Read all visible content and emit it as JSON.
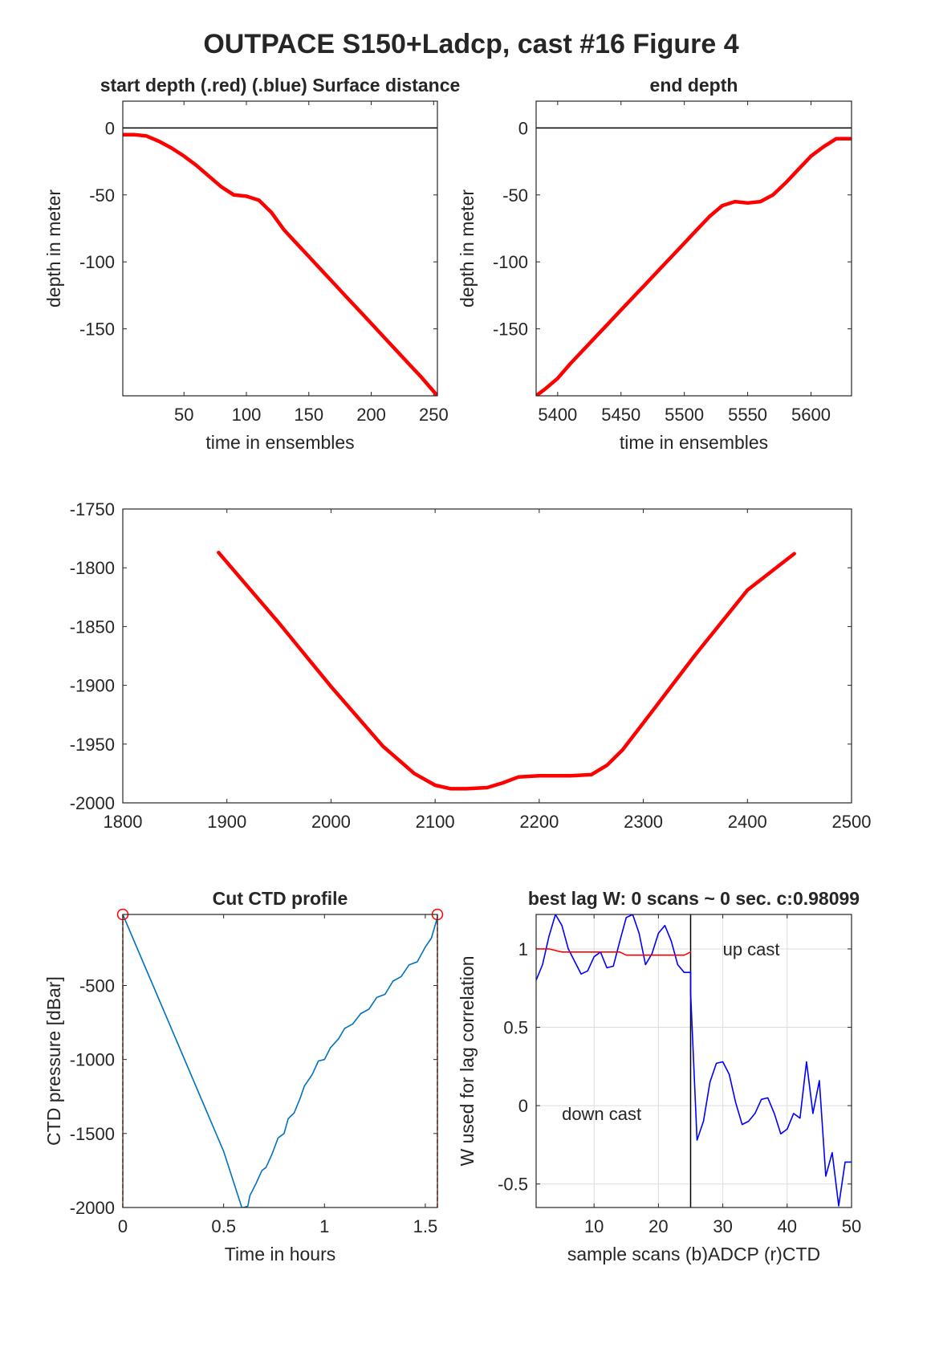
{
  "figure_title": "OUTPACE S150+Ladcp, cast #16   Figure 4",
  "chart_data": [
    {
      "id": "start",
      "type": "line",
      "title": "start depth (.red) (.blue) Surface distance",
      "xlabel": "time in ensembles",
      "ylabel": "depth in meter",
      "xlim": [
        1,
        253
      ],
      "ylim": [
        -200,
        20
      ],
      "xticks": [
        50,
        100,
        150,
        200,
        250
      ],
      "yticks": [
        0,
        -50,
        -100,
        -150
      ],
      "hline": 0,
      "series": [
        {
          "color": "#ff0000",
          "x": [
            1,
            10,
            20,
            30,
            40,
            50,
            60,
            70,
            80,
            90,
            100,
            110,
            120,
            130,
            140,
            150,
            160,
            170,
            180,
            190,
            200,
            210,
            220,
            230,
            240,
            253
          ],
          "y": [
            -5,
            -5,
            -6,
            -10,
            -15,
            -21,
            -28,
            -36,
            -44,
            -50,
            -51,
            -54,
            -63,
            -76,
            -86,
            -96,
            -106,
            -116,
            -126,
            -136,
            -146,
            -156,
            -166,
            -176,
            -186,
            -200
          ]
        }
      ]
    },
    {
      "id": "end",
      "type": "line",
      "title": "end depth",
      "xlabel": "time in ensembles",
      "ylabel": "depth in meter",
      "xlim": [
        5383,
        5632
      ],
      "ylim": [
        -200,
        20
      ],
      "xticks": [
        5400,
        5450,
        5500,
        5550,
        5600
      ],
      "yticks": [
        0,
        -50,
        -100,
        -150
      ],
      "hline": 0,
      "series": [
        {
          "color": "#ff0000",
          "x": [
            5383,
            5390,
            5400,
            5410,
            5420,
            5430,
            5440,
            5450,
            5460,
            5470,
            5480,
            5490,
            5500,
            5510,
            5520,
            5530,
            5540,
            5550,
            5560,
            5570,
            5580,
            5590,
            5600,
            5610,
            5620,
            5632
          ],
          "y": [
            -200,
            -195,
            -187,
            -176,
            -166,
            -156,
            -146,
            -136,
            -126,
            -116,
            -106,
            -96,
            -86,
            -76,
            -66,
            -58,
            -55,
            -56,
            -55,
            -50,
            -41,
            -31,
            -21,
            -14,
            -8,
            -8
          ]
        }
      ]
    },
    {
      "id": "middle",
      "type": "line",
      "title": "",
      "xlabel": "",
      "ylabel": "",
      "xlim": [
        1800,
        2500
      ],
      "ylim": [
        -2000,
        -1750
      ],
      "xticks": [
        1800,
        1900,
        2000,
        2100,
        2200,
        2300,
        2400,
        2500
      ],
      "yticks": [
        -2000,
        -1950,
        -1900,
        -1850,
        -1800,
        -1750
      ],
      "series": [
        {
          "color": "#ff0000",
          "x": [
            1892,
            1950,
            2000,
            2050,
            2080,
            2100,
            2115,
            2130,
            2150,
            2165,
            2180,
            2200,
            2230,
            2250,
            2265,
            2280,
            2300,
            2350,
            2400,
            2445
          ],
          "y": [
            -1787,
            -1847,
            -1901,
            -1952,
            -1975,
            -1985,
            -1988,
            -1988,
            -1987,
            -1983,
            -1978,
            -1977,
            -1977,
            -1976,
            -1968,
            -1955,
            -1932,
            -1874,
            -1819,
            -1788
          ]
        }
      ]
    },
    {
      "id": "ctd",
      "type": "line",
      "title": "Cut CTD profile",
      "xlabel": "Time in hours",
      "ylabel": "CTD pressure [dBar]",
      "xlim": [
        0,
        1.56
      ],
      "ylim": [
        -2000,
        -20
      ],
      "xticks": [
        0,
        0.5,
        1,
        1.5
      ],
      "xtick_labels": [
        "0",
        "0.5",
        "1",
        "1.5"
      ],
      "yticks": [
        -500,
        -1000,
        -1500,
        -2000
      ],
      "series": [
        {
          "color": "#0072bd",
          "x": [
            0,
            0.1,
            0.2,
            0.3,
            0.4,
            0.5,
            0.59,
            0.6,
            0.62,
            0.63,
            0.66,
            0.69,
            0.71,
            0.74,
            0.77,
            0.8,
            0.82,
            0.85,
            0.88,
            0.9,
            0.94,
            0.97,
            1.0,
            1.03,
            1.07,
            1.1,
            1.14,
            1.18,
            1.22,
            1.26,
            1.3,
            1.34,
            1.38,
            1.42,
            1.46,
            1.5,
            1.53,
            1.56
          ],
          "y": [
            -20,
            -340,
            -660,
            -980,
            -1300,
            -1620,
            -2000,
            -2000,
            -1990,
            -1920,
            -1840,
            -1750,
            -1730,
            -1640,
            -1530,
            -1500,
            -1400,
            -1360,
            -1260,
            -1180,
            -1100,
            -1010,
            -1000,
            -920,
            -860,
            -790,
            -760,
            -690,
            -660,
            -580,
            -560,
            -470,
            -440,
            -360,
            -340,
            -240,
            -180,
            -40
          ]
        }
      ],
      "markers": [
        {
          "x": 0,
          "y": -20,
          "color": "#ff0000"
        },
        {
          "x": 1.56,
          "y": -20,
          "color": "#ff0000"
        }
      ],
      "vlines": [
        0,
        1.56
      ]
    },
    {
      "id": "lag",
      "type": "line",
      "title": "best lag W: 0 scans ~ 0 sec.  c:0.98099",
      "xlabel": "sample scans (b)ADCP (r)CTD",
      "ylabel": "W used for lag correlation",
      "xlim": [
        1,
        50
      ],
      "ylim": [
        -0.65,
        1.22
      ],
      "xticks": [
        10,
        20,
        30,
        40,
        50
      ],
      "yticks": [
        1,
        0.5,
        0,
        -0.5
      ],
      "grid": true,
      "vline": 25,
      "annotations": [
        {
          "text": "up cast",
          "x": 30,
          "y": 1.0
        },
        {
          "text": "down cast",
          "x": 5,
          "y": -0.05
        }
      ],
      "series": [
        {
          "name": "(b)ADCP",
          "color": "#0000ff",
          "x": [
            1,
            2,
            3,
            4,
            5,
            6,
            7,
            8,
            9,
            10,
            11,
            12,
            13,
            14,
            15,
            16,
            17,
            18,
            19,
            20,
            21,
            22,
            23,
            24,
            25,
            25,
            26,
            27,
            28,
            29,
            30,
            31,
            32,
            33,
            34,
            35,
            36,
            37,
            38,
            39,
            40,
            41,
            42,
            43,
            44,
            45,
            46,
            47,
            48,
            49,
            50
          ],
          "y": [
            0.8,
            0.9,
            1.08,
            1.22,
            1.15,
            1.0,
            0.92,
            0.84,
            0.86,
            0.95,
            0.98,
            0.88,
            0.89,
            1.05,
            1.2,
            1.22,
            1.1,
            0.9,
            0.97,
            1.1,
            1.15,
            1.05,
            0.9,
            0.85,
            0.85,
            0.72,
            -0.22,
            -0.1,
            0.15,
            0.27,
            0.28,
            0.2,
            0.02,
            -0.12,
            -0.1,
            -0.05,
            0.04,
            0.05,
            -0.05,
            -0.18,
            -0.15,
            -0.05,
            -0.08,
            0.28,
            -0.05,
            0.16,
            -0.45,
            -0.3,
            -0.64,
            -0.36,
            -0.36
          ]
        },
        {
          "name": "(r)CTD",
          "color": "#ff0000",
          "x": [
            1,
            3,
            4,
            5,
            10,
            14,
            15,
            24,
            25
          ],
          "y": [
            1.0,
            1.0,
            0.99,
            0.98,
            0.98,
            0.98,
            0.96,
            0.96,
            0.98
          ]
        }
      ]
    }
  ]
}
